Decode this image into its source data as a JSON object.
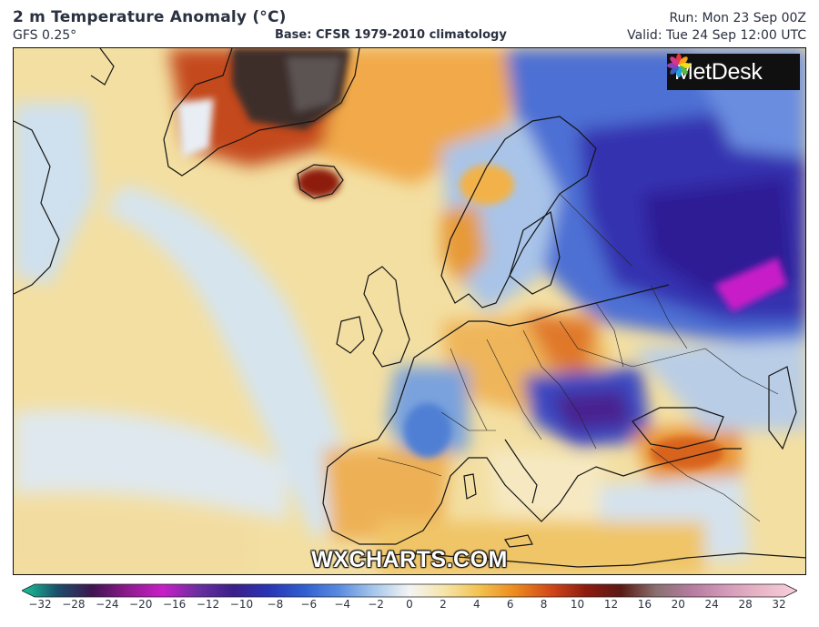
{
  "header": {
    "title": "2 m Temperature Anomaly (°C)",
    "model": "GFS 0.25°",
    "base": "Base: CFSR 1979-2010 climatology",
    "run": "Run: Mon 23 Sep 00Z",
    "valid": "Valid: Tue 24 Sep 12:00 UTC"
  },
  "logo": {
    "text": "MetDesk"
  },
  "watermark": "WXCHARTS.COM",
  "colorbar": {
    "ticks": [
      "−32",
      "−28",
      "−24",
      "−20",
      "−16",
      "−12",
      "−10",
      "−8",
      "−6",
      "−4",
      "−2",
      "0",
      "2",
      "4",
      "6",
      "8",
      "10",
      "12",
      "16",
      "20",
      "24",
      "28",
      "32"
    ],
    "stops": [
      "#16c79a",
      "#1b4f6b",
      "#3f1451",
      "#8e1a8e",
      "#c81fc8",
      "#6a2fa0",
      "#3b1f8a",
      "#2a34b5",
      "#2f5fd0",
      "#5a8be0",
      "#a8c8ec",
      "#f4f4f4",
      "#f6e4a8",
      "#f2c14e",
      "#ec8a1e",
      "#d2481a",
      "#8e1b10",
      "#5a1a14",
      "#8a7070",
      "#b57ca0",
      "#d49ab8",
      "#e9b7c8",
      "#f8d0da"
    ]
  }
}
